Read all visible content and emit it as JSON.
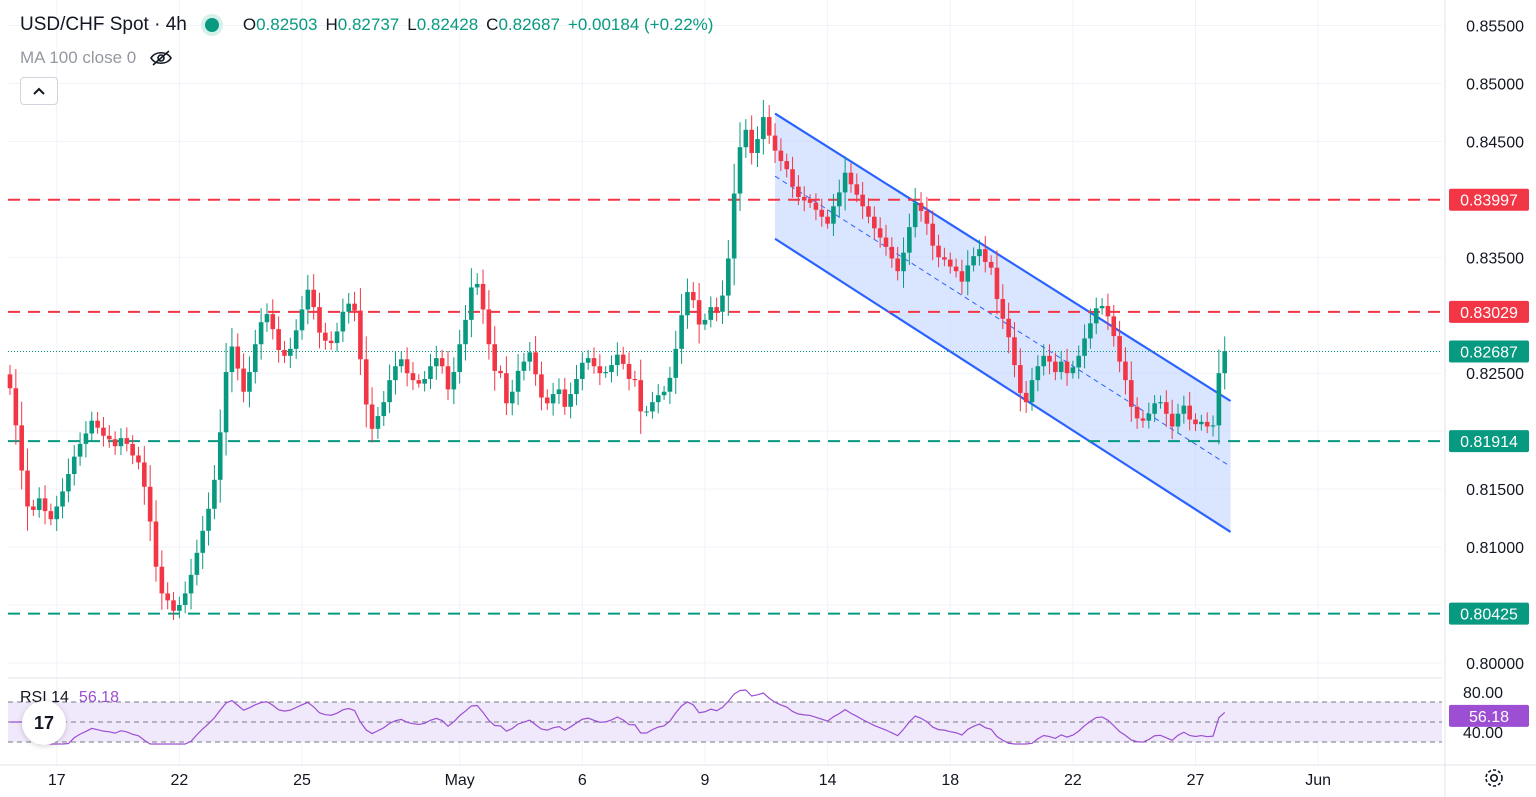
{
  "header": {
    "title": "USD/CHF Spot · 4h",
    "open_label": "O",
    "open": "0.82503",
    "high_label": "H",
    "high": "0.82737",
    "low_label": "L",
    "low": "0.82428",
    "close_label": "C",
    "close": "0.82687",
    "change": "+0.00184 (+0.22%)"
  },
  "indicator": {
    "ma_label": "MA 100 close 0",
    "eye_icon": "eye-crossed-icon"
  },
  "collapse_icon": "chevron-up-icon",
  "rsi": {
    "label": "RSI 14",
    "value": "56.18"
  },
  "logo": {
    "icon": "tradingview-logo-icon",
    "text": "17"
  },
  "settings_icon": "gear-icon",
  "colors": {
    "up": "#089981",
    "down": "#f23645",
    "channel": "#2962ff",
    "channel_fill": "#bbd0ff",
    "rsi": "#9c4fd2",
    "rsi_band": "#f0e8fb",
    "resistance": "#f23645",
    "support": "#089981"
  },
  "chart_data": {
    "type": "candlestick",
    "instrument": "USD/CHF Spot",
    "timeframe": "4h",
    "x_ticks": [
      "17",
      "22",
      "25",
      "May",
      "6",
      "9",
      "14",
      "18",
      "22",
      "27",
      "Jun"
    ],
    "y_ticks": [
      "0.85500",
      "0.85000",
      "0.84500",
      "0.83500",
      "0.82500",
      "0.81500",
      "0.81000",
      "0.80000"
    ],
    "ylim": [
      0.7987,
      0.8572
    ],
    "last_price": "0.82687",
    "horizontal_levels": [
      {
        "value": "0.83997",
        "kind": "resistance"
      },
      {
        "value": "0.83029",
        "kind": "resistance"
      },
      {
        "value": "0.81914",
        "kind": "support"
      },
      {
        "value": "0.80425",
        "kind": "support"
      }
    ],
    "descending_channel": {
      "upper_start": 0.8474,
      "upper_end": 0.8226,
      "lower_start": 0.8366,
      "lower_end": 0.8113,
      "start_bar": 131,
      "end_bar": 209
    },
    "closes": [
      0.8237,
      0.8205,
      0.8166,
      0.8135,
      0.8132,
      0.8142,
      0.8131,
      0.8124,
      0.8135,
      0.8148,
      0.8163,
      0.8178,
      0.8189,
      0.8198,
      0.8209,
      0.8203,
      0.8196,
      0.8193,
      0.8187,
      0.8194,
      0.8189,
      0.8179,
      0.8173,
      0.8152,
      0.8122,
      0.8083,
      0.806,
      0.8054,
      0.8045,
      0.805,
      0.806,
      0.8076,
      0.8095,
      0.8114,
      0.8133,
      0.8158,
      0.8199,
      0.8251,
      0.8273,
      0.8254,
      0.8234,
      0.8251,
      0.8275,
      0.8294,
      0.8301,
      0.8288,
      0.827,
      0.8265,
      0.8271,
      0.8287,
      0.8305,
      0.8322,
      0.8307,
      0.8285,
      0.8278,
      0.8276,
      0.8286,
      0.8303,
      0.831,
      0.8304,
      0.8262,
      0.8223,
      0.8202,
      0.8213,
      0.8225,
      0.8244,
      0.8256,
      0.8262,
      0.825,
      0.8244,
      0.8241,
      0.8245,
      0.8256,
      0.8263,
      0.8256,
      0.8236,
      0.8251,
      0.8275,
      0.8296,
      0.8324,
      0.8327,
      0.8305,
      0.8275,
      0.8252,
      0.825,
      0.8224,
      0.8234,
      0.8252,
      0.826,
      0.8268,
      0.8249,
      0.8229,
      0.8224,
      0.8232,
      0.8236,
      0.8221,
      0.8232,
      0.8245,
      0.8259,
      0.8263,
      0.8256,
      0.825,
      0.8251,
      0.8257,
      0.8266,
      0.8258,
      0.8245,
      0.8244,
      0.8217,
      0.8217,
      0.8225,
      0.8231,
      0.8234,
      0.8246,
      0.8271,
      0.83,
      0.832,
      0.8313,
      0.8292,
      0.8296,
      0.8307,
      0.8303,
      0.8317,
      0.8349,
      0.8405,
      0.8445,
      0.846,
      0.844,
      0.8452,
      0.8471,
      0.8455,
      0.8442,
      0.8433,
      0.8426,
      0.8411,
      0.8402,
      0.8399,
      0.8397,
      0.8391,
      0.8385,
      0.8379,
      0.8394,
      0.8406,
      0.8423,
      0.8413,
      0.8404,
      0.8394,
      0.8385,
      0.8375,
      0.8367,
      0.8359,
      0.8349,
      0.8338,
      0.8354,
      0.8376,
      0.8397,
      0.839,
      0.8379,
      0.836,
      0.835,
      0.8348,
      0.8342,
      0.8338,
      0.8329,
      0.8343,
      0.8351,
      0.8357,
      0.8346,
      0.8341,
      0.8314,
      0.8297,
      0.8281,
      0.8257,
      0.8233,
      0.8225,
      0.8244,
      0.8256,
      0.8265,
      0.826,
      0.8251,
      0.826,
      0.825,
      0.8255,
      0.8265,
      0.828,
      0.8293,
      0.8306,
      0.8308,
      0.8299,
      0.8282,
      0.826,
      0.8244,
      0.8221,
      0.8211,
      0.8209,
      0.8215,
      0.8224,
      0.8225,
      0.8215,
      0.8204,
      0.8215,
      0.8222,
      0.821,
      0.8206,
      0.8208,
      0.8204,
      0.8205,
      0.825,
      0.8269
    ],
    "rsi_scale": [
      "80.00",
      "40.00"
    ],
    "rsi_levels": [
      70,
      50,
      30
    ]
  }
}
